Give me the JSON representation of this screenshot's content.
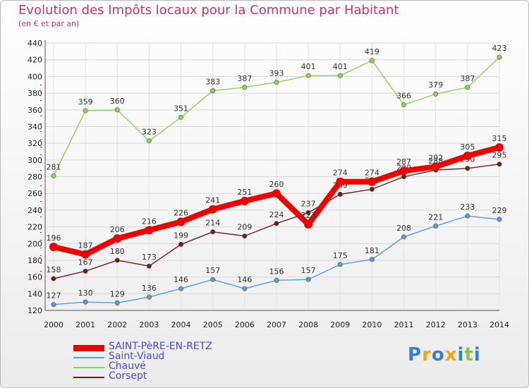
{
  "header": {
    "title": "Evolution des Impôts locaux pour la Commune par Habitant",
    "subtitle": "(en € et par an)"
  },
  "chart_data": {
    "type": "line",
    "title": "Evolution des Impôts locaux pour la Commune par Habitant",
    "subtitle": "(en € et par an)",
    "xlabel": "",
    "ylabel": "",
    "x": [
      "2000",
      "2001",
      "2002",
      "2003",
      "2004",
      "2005",
      "2006",
      "2007",
      "2008",
      "2009",
      "2010",
      "2011",
      "2012",
      "2013",
      "2014"
    ],
    "ylim": [
      120,
      440
    ],
    "yticks": [
      120,
      140,
      160,
      180,
      200,
      220,
      240,
      260,
      280,
      300,
      320,
      340,
      360,
      380,
      400,
      420,
      440
    ],
    "grid": true,
    "legend_position": "bottom-left",
    "series": [
      {
        "name": "Saint-Viaud",
        "color": "#5b9bd5",
        "values": [
          127,
          130,
          129,
          136,
          146,
          157,
          146,
          156,
          157,
          175,
          181,
          208,
          221,
          233,
          229
        ]
      },
      {
        "name": "Chauvé",
        "color": "#8cd35a",
        "values": [
          281,
          359,
          360,
          323,
          351,
          383,
          387,
          393,
          401,
          401,
          419,
          366,
          379,
          387,
          423
        ]
      },
      {
        "name": "Corsept",
        "color": "#6b1f1f",
        "values": [
          158,
          167,
          180,
          173,
          199,
          214,
          209,
          224,
          237,
          259,
          265,
          280,
          288,
          290,
          295
        ]
      },
      {
        "name": "SAINT-PèRE-EN-RETZ",
        "color": "#ee0000",
        "values": [
          196,
          187,
          206,
          216,
          226,
          241,
          251,
          260,
          223,
          274,
          274,
          287,
          292,
          305,
          315
        ]
      }
    ],
    "data_labels": [
      {
        "series": "Saint-Viaud",
        "labels": [
          "127",
          "130",
          "129",
          "136",
          "146",
          "157",
          "146",
          "156",
          "157",
          "175",
          "181",
          "208",
          "221",
          "233",
          "229"
        ]
      },
      {
        "series": "Chauvé",
        "labels": [
          "281",
          "359",
          "360",
          "323",
          "351",
          "383",
          "387",
          "393",
          "401",
          "401",
          "419",
          "366",
          "379",
          "387",
          "423"
        ]
      },
      {
        "series": "Corsept",
        "labels": [
          "158",
          "167",
          "180",
          "173",
          "199",
          "214",
          "209",
          "224",
          "237",
          "259",
          "265",
          "280",
          "288",
          "290",
          "295"
        ]
      },
      {
        "series": "SAINT-PèRE-EN-RETZ",
        "labels": [
          "196",
          "187",
          "206",
          "216",
          "226",
          "241",
          "251",
          "260",
          "223",
          "274",
          "274",
          "287",
          "292",
          "305",
          "315"
        ]
      }
    ]
  },
  "legend": {
    "items": [
      {
        "label": "SAINT-PèRE-EN-RETZ",
        "color": "#ee0000"
      },
      {
        "label": "Saint-Viaud",
        "color": "#5b9bd5"
      },
      {
        "label": "Chauvé",
        "color": "#8cd35a"
      },
      {
        "label": "Corsept",
        "color": "#6b1f1f"
      }
    ]
  },
  "logo": {
    "text": "Proxiti",
    "letters": [
      {
        "ch": "P",
        "color": "#3a7fd1"
      },
      {
        "ch": "r",
        "color": "#f4a01c"
      },
      {
        "ch": "o",
        "color": "#3a7fd1"
      },
      {
        "ch": "x",
        "color": "#f4a01c"
      },
      {
        "ch": "i",
        "color": "#3a7fd1"
      },
      {
        "ch": "t",
        "color": "#8cc63f"
      },
      {
        "ch": "i",
        "color": "#3a7fd1"
      }
    ]
  }
}
